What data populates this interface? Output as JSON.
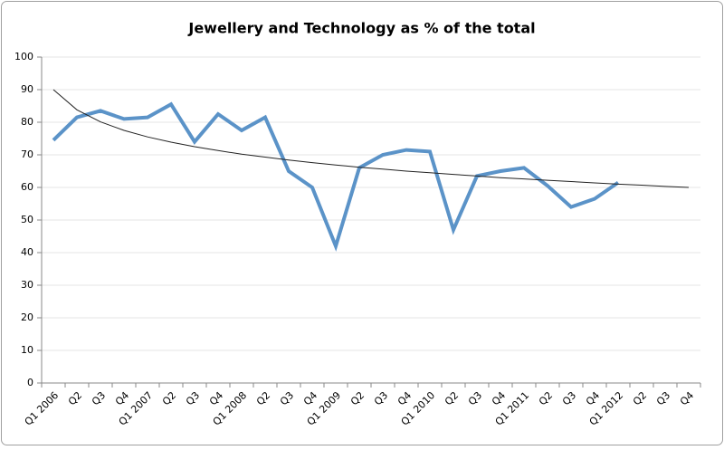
{
  "chart_data": {
    "type": "line",
    "title": "Jewellery and Technology as % of the total",
    "categories": [
      "Q1 2006",
      "Q2",
      "Q3",
      "Q4",
      "Q1 2007",
      "Q2",
      "Q3",
      "Q4",
      "Q1 2008",
      "Q2",
      "Q3",
      "Q4",
      "Q1 2009",
      "Q2",
      "Q3",
      "Q4",
      "Q1 2010",
      "Q2",
      "Q3",
      "Q4",
      "Q1 2011",
      "Q2",
      "Q3",
      "Q4",
      "Q1 2012",
      "Q2",
      "Q3",
      "Q4"
    ],
    "series": [
      {
        "color": "#5b93c8",
        "values": [
          74.5,
          81.5,
          83.5,
          81,
          81.5,
          85.5,
          74,
          82.5,
          77.5,
          81.5,
          65,
          60,
          42,
          66,
          70,
          71.5,
          71,
          47,
          63.5,
          65,
          66,
          60.5,
          54,
          56.5,
          61.5,
          null,
          null,
          null
        ]
      },
      {
        "color": "#222222",
        "values": [
          90,
          83.8,
          80.1,
          77.5,
          75.5,
          73.9,
          72.5,
          71.3,
          70.2,
          69.3,
          68.4,
          67.6,
          66.9,
          66.2,
          65.6,
          65,
          64.5,
          64,
          63.5,
          63,
          62.6,
          62.2,
          61.8,
          61.4,
          61,
          60.7,
          60.3,
          60
        ]
      }
    ],
    "ylim": [
      0,
      100
    ],
    "yticks": [
      0,
      10,
      20,
      30,
      40,
      50,
      60,
      70,
      80,
      90,
      100
    ],
    "grid": true
  }
}
